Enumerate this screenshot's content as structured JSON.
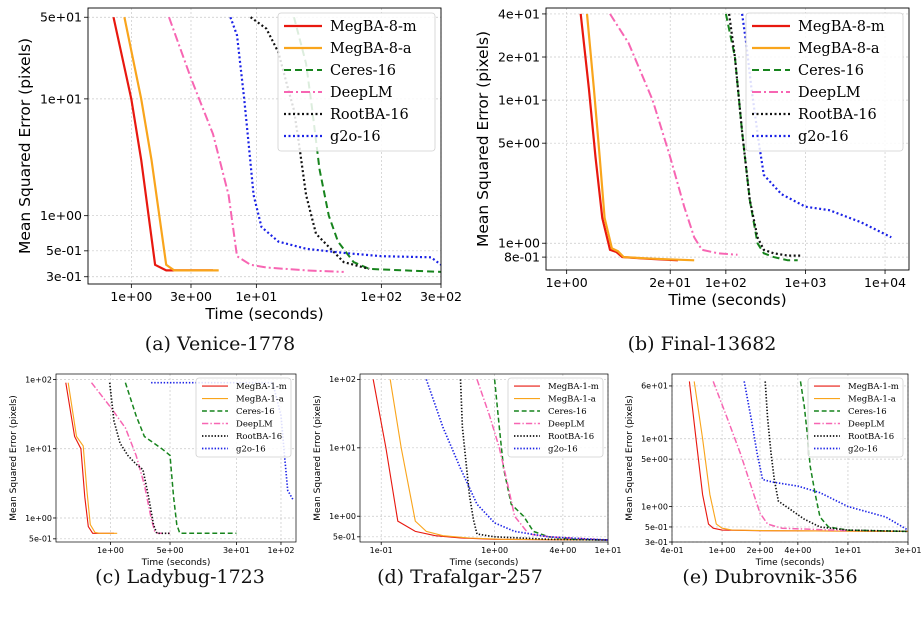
{
  "styles": {
    "MegBA-8-m": {
      "color": "#e8180f",
      "dash": "",
      "width": 2.2
    },
    "MegBA-8-a": {
      "color": "#f9a51c",
      "dash": "",
      "width": 2.2
    },
    "MegBA-1-m": {
      "color": "#e8180f",
      "dash": "",
      "width": 1.5
    },
    "MegBA-1-a": {
      "color": "#f9a51c",
      "dash": "",
      "width": 1.5
    },
    "Ceres-16": {
      "color": "#17841d",
      "dash": "7 4",
      "width": 2.0
    },
    "DeepLM": {
      "color": "#f766b3",
      "dash": "9 3 2 3",
      "width": 2.0
    },
    "RootBA-16": {
      "color": "#111111",
      "dash": "2 2.5",
      "width": 2.2
    },
    "g2o-16": {
      "color": "#1b22e6",
      "dash": "2 2.5",
      "width": 2.2
    }
  },
  "chart_data": [
    {
      "type": "line",
      "caption": "(a) Venice-1778",
      "xlabel": "Time (seconds)",
      "ylabel": "Mean Squared Error (pixels)",
      "xscale": "log",
      "yscale": "log",
      "xlim": [
        0.45,
        300
      ],
      "ylim": [
        0.26,
        60
      ],
      "xticks": [
        1,
        3,
        10,
        100,
        300
      ],
      "xtick_labels": [
        "1e+00",
        "3e+00",
        "1e+01",
        "1e+02",
        "3e+02"
      ],
      "yticks": [
        0.3,
        0.5,
        1,
        10,
        50
      ],
      "ytick_labels": [
        "3e-01",
        "5e-01",
        "1e+00",
        "1e+01",
        "5e+01"
      ],
      "grid": true,
      "legend_position": "top-right",
      "series": [
        {
          "name": "MegBA-8-m",
          "x": [
            0.72,
            1.0,
            1.2,
            1.55,
            1.9,
            4.5
          ],
          "y": [
            50,
            10,
            3.0,
            0.38,
            0.34,
            0.34
          ]
        },
        {
          "name": "MegBA-8-a",
          "x": [
            0.88,
            1.2,
            1.45,
            1.9,
            2.2,
            5.0
          ],
          "y": [
            50,
            10,
            3.0,
            0.38,
            0.34,
            0.34
          ]
        },
        {
          "name": "Ceres-16",
          "x": [
            20,
            25,
            28,
            32,
            38,
            45,
            60,
            80,
            300
          ],
          "y": [
            50,
            20,
            8,
            2.5,
            1.0,
            0.6,
            0.4,
            0.35,
            0.33
          ]
        },
        {
          "name": "DeepLM",
          "x": [
            2.0,
            3.0,
            4.5,
            6.0,
            7.0,
            9.0,
            12,
            25,
            50
          ],
          "y": [
            50,
            15,
            5,
            1.5,
            0.45,
            0.38,
            0.36,
            0.34,
            0.33
          ]
        },
        {
          "name": "RootBA-16",
          "x": [
            9,
            12,
            15,
            18,
            20,
            22,
            25,
            30,
            50,
            80
          ],
          "y": [
            50,
            40,
            25,
            12,
            8,
            4,
            1.5,
            0.7,
            0.4,
            0.35
          ]
        },
        {
          "name": "g2o-16",
          "x": [
            6.2,
            7.0,
            8.0,
            8.7,
            9.5,
            11,
            15,
            25,
            50,
            100,
            250,
            300
          ],
          "y": [
            50,
            35,
            10,
            4.0,
            1.5,
            0.8,
            0.6,
            0.52,
            0.48,
            0.45,
            0.44,
            0.38
          ]
        }
      ]
    },
    {
      "type": "line",
      "caption": "(b) Final-13682",
      "xlabel": "Time (seconds)",
      "ylabel": "Mean Squared Error (pixels)",
      "xscale": "log",
      "yscale": "log",
      "xlim": [
        0.55,
        20000
      ],
      "ylim": [
        0.65,
        44
      ],
      "xticks": [
        1,
        20,
        100,
        1000,
        10000
      ],
      "xtick_labels": [
        "1e+00",
        "2e+01",
        "1e+02",
        "1e+03",
        "1e+04"
      ],
      "yticks": [
        0.8,
        1,
        5,
        10,
        20,
        40
      ],
      "ytick_labels": [
        "8e-01",
        "1e+00",
        "5e+00",
        "1e+01",
        "2e+01",
        "4e+01"
      ],
      "grid": true,
      "legend_position": "top-right",
      "series": [
        {
          "name": "MegBA-8-m",
          "x": [
            1.5,
            1.9,
            2.3,
            2.8,
            3.5,
            4.2,
            5.0,
            10,
            25
          ],
          "y": [
            40,
            12,
            4.0,
            1.5,
            0.9,
            0.87,
            0.8,
            0.78,
            0.76
          ]
        },
        {
          "name": "MegBA-8-a",
          "x": [
            1.8,
            2.2,
            2.6,
            3.0,
            3.7,
            4.4,
            5.2,
            12,
            40
          ],
          "y": [
            40,
            12,
            4.0,
            1.5,
            0.92,
            0.88,
            0.8,
            0.78,
            0.76
          ]
        },
        {
          "name": "Ceres-16",
          "x": [
            100,
            130,
            160,
            200,
            250,
            300,
            400,
            600,
            800
          ],
          "y": [
            40,
            20,
            6,
            2,
            1.0,
            0.85,
            0.8,
            0.76,
            0.76
          ]
        },
        {
          "name": "DeepLM",
          "x": [
            3.5,
            6.0,
            12,
            20,
            30,
            40,
            50,
            80,
            140
          ],
          "y": [
            40,
            25,
            10,
            4,
            1.8,
            1.1,
            0.9,
            0.85,
            0.83
          ]
        },
        {
          "name": "RootBA-16",
          "x": [
            110,
            130,
            160,
            200,
            250,
            300,
            400,
            600,
            900
          ],
          "y": [
            40,
            20,
            6,
            2,
            1.1,
            0.9,
            0.85,
            0.82,
            0.82
          ]
        },
        {
          "name": "g2o-16",
          "x": [
            160,
            180,
            210,
            260,
            300,
            500,
            1000,
            2000,
            5000,
            12000
          ],
          "y": [
            40,
            25,
            12,
            5,
            3.0,
            2.2,
            1.8,
            1.7,
            1.4,
            1.1
          ]
        }
      ]
    },
    {
      "type": "line",
      "caption": "(c) Ladybug-1723",
      "xlabel": "Time (seconds)",
      "ylabel": "Mean Squared Error (pixels)",
      "xscale": "log",
      "yscale": "log",
      "xlim": [
        0.23,
        150
      ],
      "ylim": [
        0.45,
        120
      ],
      "xticks": [
        1,
        5,
        30,
        100
      ],
      "xtick_labels": [
        "1e+00",
        "5e+00",
        "3e+01",
        "1e+02"
      ],
      "yticks": [
        0.5,
        1,
        10,
        100
      ],
      "ytick_labels": [
        "5e-01",
        "1e+00",
        "1e+01",
        "1e+02"
      ],
      "grid": true,
      "legend_position": "top-right",
      "series": [
        {
          "name": "MegBA-1-m",
          "x": [
            0.3,
            0.38,
            0.45,
            0.5,
            0.55,
            0.62,
            0.7,
            1.1
          ],
          "y": [
            90,
            15,
            10,
            2.0,
            0.75,
            0.6,
            0.6,
            0.6
          ]
        },
        {
          "name": "MegBA-1-a",
          "x": [
            0.32,
            0.4,
            0.48,
            0.53,
            0.58,
            0.66,
            0.75,
            1.2
          ],
          "y": [
            90,
            15,
            11,
            2.5,
            0.8,
            0.62,
            0.6,
            0.6
          ]
        },
        {
          "name": "Ceres-16",
          "x": [
            1.5,
            2.0,
            2.5,
            4.0,
            5.0,
            5.5,
            6.0,
            6.5,
            10,
            30
          ],
          "y": [
            90,
            30,
            15,
            10,
            8,
            2.0,
            0.8,
            0.6,
            0.6,
            0.6
          ]
        },
        {
          "name": "DeepLM",
          "x": [
            0.6,
            1.0,
            1.5,
            2.0,
            2.5,
            3.0,
            3.3,
            3.6,
            5.0
          ],
          "y": [
            90,
            40,
            20,
            8,
            3.0,
            1.0,
            0.65,
            0.6,
            0.6
          ]
        },
        {
          "name": "RootBA-16",
          "x": [
            0.98,
            1.1,
            1.3,
            1.6,
            2.0,
            2.4,
            2.8,
            3.2,
            3.5,
            5.0
          ],
          "y": [
            90,
            25,
            12,
            8,
            6,
            5,
            2.0,
            0.8,
            0.6,
            0.6
          ]
        },
        {
          "name": "g2o-16",
          "x": [
            3.0,
            5.0,
            20,
            80,
            100,
            110,
            120,
            140
          ],
          "y": [
            90,
            90,
            90,
            90,
            30,
            8,
            2.5,
            1.8
          ]
        }
      ]
    },
    {
      "type": "line",
      "caption": "(d) Trafalgar-257",
      "xlabel": "Time (seconds)",
      "ylabel": "Mean Squared Error (pixels)",
      "xscale": "log",
      "yscale": "log",
      "xlim": [
        0.065,
        10
      ],
      "ylim": [
        0.42,
        120
      ],
      "xticks": [
        0.1,
        1,
        4,
        10
      ],
      "xtick_labels": [
        "1e-01",
        "1e+00",
        "4e+00",
        "1e+01"
      ],
      "yticks": [
        0.5,
        1,
        10,
        100
      ],
      "ytick_labels": [
        "5e-01",
        "1e+00",
        "1e+01",
        "1e+02"
      ],
      "grid": true,
      "legend_position": "top-right",
      "series": [
        {
          "name": "MegBA-1-m",
          "x": [
            0.085,
            0.11,
            0.14,
            0.2,
            0.3,
            0.5,
            1.0,
            10
          ],
          "y": [
            100,
            10,
            0.85,
            0.6,
            0.52,
            0.48,
            0.46,
            0.45
          ]
        },
        {
          "name": "MegBA-1-a",
          "x": [
            0.12,
            0.15,
            0.2,
            0.25,
            0.35,
            0.6,
            1.2,
            10
          ],
          "y": [
            100,
            10,
            0.85,
            0.6,
            0.52,
            0.48,
            0.46,
            0.45
          ]
        },
        {
          "name": "Ceres-16",
          "x": [
            1.0,
            1.1,
            1.2,
            1.4,
            1.8,
            2.2,
            3.0,
            5,
            10
          ],
          "y": [
            100,
            20,
            5,
            1.5,
            1.0,
            0.6,
            0.5,
            0.46,
            0.45
          ]
        },
        {
          "name": "DeepLM",
          "x": [
            0.7,
            0.9,
            1.1,
            1.3,
            1.5,
            2.0,
            3.0,
            10
          ],
          "y": [
            100,
            30,
            10,
            3.0,
            1.0,
            0.55,
            0.5,
            0.45
          ]
        },
        {
          "name": "RootBA-16",
          "x": [
            0.5,
            0.52,
            0.55,
            0.6,
            0.65,
            0.7,
            1.0,
            3,
            10
          ],
          "y": [
            100,
            20,
            8,
            2.0,
            0.9,
            0.55,
            0.5,
            0.46,
            0.45
          ]
        },
        {
          "name": "g2o-16",
          "x": [
            0.25,
            0.35,
            0.5,
            0.7,
            1.0,
            1.5,
            3.0,
            6,
            10
          ],
          "y": [
            100,
            20,
            5,
            1.5,
            0.8,
            0.6,
            0.5,
            0.47,
            0.45
          ]
        }
      ]
    },
    {
      "type": "line",
      "caption": "(e) Dubrovnik-356",
      "xlabel": "Time (seconds)",
      "ylabel": "Mean Squared Error (pixels)",
      "xscale": "log",
      "yscale": "log",
      "xlim": [
        0.4,
        30
      ],
      "ylim": [
        0.3,
        90
      ],
      "xticks": [
        0.4,
        1,
        2,
        4,
        10,
        30
      ],
      "xtick_labels": [
        "4e-01",
        "1e+00",
        "2e+00",
        "4e+00",
        "1e+01",
        "3e+01"
      ],
      "yticks": [
        0.3,
        0.5,
        1,
        5,
        10,
        60
      ],
      "ytick_labels": [
        "3e-01",
        "5e-01",
        "1e+00",
        "5e+00",
        "1e+01",
        "6e+01"
      ],
      "grid": true,
      "legend_position": "top-right",
      "series": [
        {
          "name": "MegBA-1-m",
          "x": [
            0.55,
            0.62,
            0.7,
            0.78,
            0.85,
            1.0,
            2.0,
            30
          ],
          "y": [
            70,
            10,
            1.5,
            0.55,
            0.48,
            0.45,
            0.44,
            0.43
          ]
        },
        {
          "name": "MegBA-1-a",
          "x": [
            0.6,
            0.7,
            0.8,
            0.9,
            1.0,
            1.2,
            2.5,
            30
          ],
          "y": [
            70,
            10,
            1.5,
            0.55,
            0.48,
            0.45,
            0.44,
            0.43
          ]
        },
        {
          "name": "Ceres-16",
          "x": [
            4.2,
            4.5,
            4.8,
            5.0,
            5.5,
            6.0,
            7.0,
            10,
            30
          ],
          "y": [
            70,
            30,
            10,
            4,
            1.5,
            0.7,
            0.5,
            0.45,
            0.43
          ]
        },
        {
          "name": "DeepLM",
          "x": [
            0.85,
            1.1,
            1.4,
            1.7,
            2.0,
            2.3,
            3.0,
            10
          ],
          "y": [
            70,
            20,
            6,
            2.0,
            0.8,
            0.55,
            0.48,
            0.44
          ]
        },
        {
          "name": "RootBA-16",
          "x": [
            2.2,
            2.3,
            2.45,
            2.6,
            2.8,
            3.5,
            4.5,
            6.0,
            10,
            30
          ],
          "y": [
            70,
            20,
            6,
            2.5,
            1.2,
            0.9,
            0.65,
            0.5,
            0.45,
            0.43
          ]
        },
        {
          "name": "g2o-16",
          "x": [
            1.5,
            1.7,
            1.9,
            2.1,
            2.5,
            4.0,
            6.0,
            10,
            20,
            30
          ],
          "y": [
            70,
            20,
            6,
            2.5,
            2.3,
            2.0,
            1.6,
            1.0,
            0.7,
            0.45
          ]
        }
      ]
    }
  ]
}
